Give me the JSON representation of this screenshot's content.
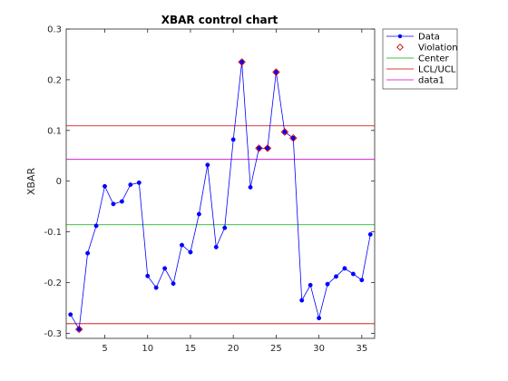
{
  "chart_data": {
    "type": "line",
    "title": "XBAR control chart",
    "xlabel": "",
    "ylabel": "XBAR",
    "xlim": [
      0.5,
      36.5
    ],
    "ylim": [
      -0.31,
      0.3
    ],
    "xticks": [
      5,
      10,
      15,
      20,
      25,
      30,
      35
    ],
    "yticks": [
      -0.3,
      -0.2,
      -0.1,
      0,
      0.1,
      0.2,
      0.3
    ],
    "ytick_labels": [
      "-0.3",
      "-0.2",
      "-0.1",
      "0",
      "0.1",
      "0.2",
      "0.3"
    ],
    "grid": false,
    "legend_position": "top-right",
    "series": [
      {
        "name": "Data",
        "kind": "line-marker",
        "color": "#0000ff",
        "x": [
          1,
          2,
          3,
          4,
          5,
          6,
          7,
          8,
          9,
          10,
          11,
          12,
          13,
          14,
          15,
          16,
          17,
          18,
          19,
          20,
          21,
          22,
          23,
          24,
          25,
          26,
          27,
          28,
          29,
          30,
          31,
          32,
          33,
          34,
          35,
          36
        ],
        "y": [
          -0.263,
          -0.292,
          -0.142,
          -0.088,
          -0.01,
          -0.045,
          -0.04,
          -0.007,
          -0.003,
          -0.187,
          -0.21,
          -0.172,
          -0.202,
          -0.126,
          -0.14,
          -0.065,
          0.032,
          -0.13,
          -0.092,
          0.082,
          0.235,
          -0.012,
          0.065,
          0.065,
          0.215,
          0.097,
          0.085,
          -0.235,
          -0.205,
          -0.27,
          -0.203,
          -0.188,
          -0.172,
          -0.183,
          -0.195,
          -0.105
        ]
      },
      {
        "name": "Violation",
        "kind": "marker",
        "color": "#cc0000",
        "x": [
          2,
          21,
          23,
          24,
          25,
          26,
          27
        ],
        "y": [
          -0.292,
          0.235,
          0.065,
          0.065,
          0.215,
          0.097,
          0.085
        ]
      },
      {
        "name": "Center",
        "kind": "hline",
        "color": "#00aa00",
        "y": -0.086
      },
      {
        "name": "LCL/UCL",
        "kind": "hline-pair",
        "color": "#cc0000",
        "y": [
          -0.281,
          0.109
        ]
      },
      {
        "name": "data1",
        "kind": "hline",
        "color": "#cc00cc",
        "y": 0.043
      }
    ]
  }
}
